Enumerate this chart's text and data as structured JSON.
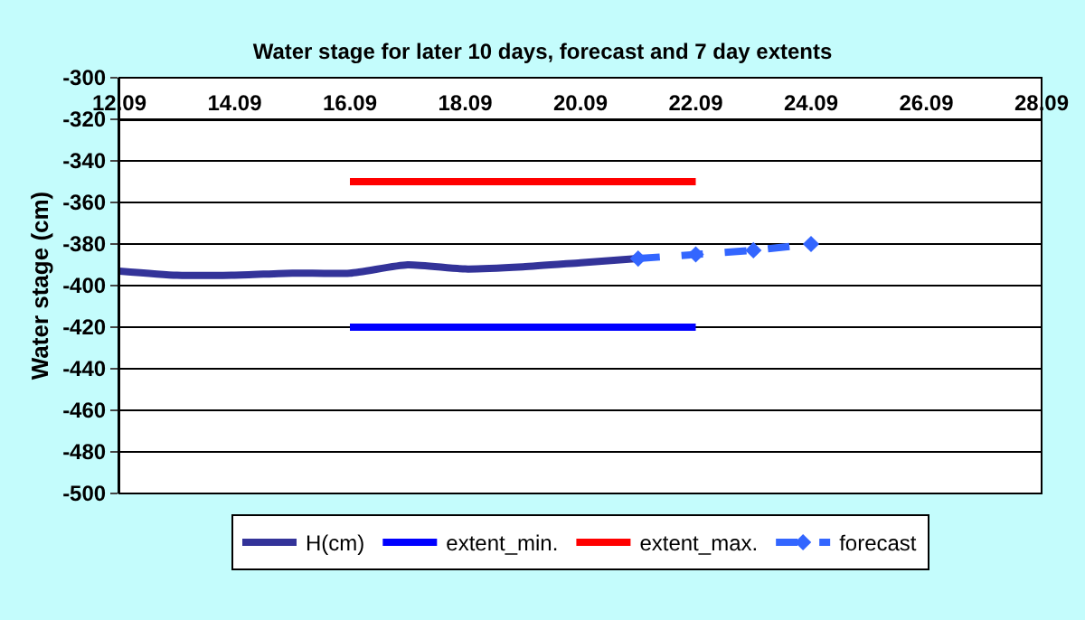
{
  "chart_data": {
    "type": "line",
    "title": "Water stage for later 10 days, forecast and 7 day extents",
    "ylabel": "Water stage (cm)",
    "xlim": [
      "--09-12",
      "--09-28"
    ],
    "xticks": [
      {
        "value": "--09-12",
        "label": "12.09"
      },
      {
        "value": "--09-14",
        "label": "14.09"
      },
      {
        "value": "--09-16",
        "label": "16.09"
      },
      {
        "value": "--09-18",
        "label": "18.09"
      },
      {
        "value": "--09-20",
        "label": "20.09"
      },
      {
        "value": "--09-22",
        "label": "22.09"
      },
      {
        "value": "--09-24",
        "label": "24.09"
      },
      {
        "value": "--09-26",
        "label": "26.09"
      },
      {
        "value": "--09-28",
        "label": "28.09"
      }
    ],
    "ylim": [
      -500,
      -300
    ],
    "yticks": [
      -300,
      -320,
      -340,
      -360,
      -380,
      -400,
      -420,
      -440,
      -460,
      -480,
      -500
    ],
    "grid": "y",
    "legend": "bottom",
    "series": [
      {
        "name": "H(cm)",
        "color": "#333399",
        "x": [
          "--09-12",
          "--09-13",
          "--09-14",
          "--09-15",
          "--09-16",
          "--09-17",
          "--09-18",
          "--09-19",
          "--09-20",
          "--09-21"
        ],
        "values": [
          -393,
          -395,
          -395,
          -394,
          -394,
          -390,
          -392,
          -391,
          -389,
          -387
        ]
      },
      {
        "name": "extent_min.",
        "color": "#0000ff",
        "x": [
          "--09-16",
          "--09-22"
        ],
        "values": [
          -420,
          -420
        ]
      },
      {
        "name": "extent_max.",
        "color": "#ff0000",
        "x": [
          "--09-16",
          "--09-22"
        ],
        "values": [
          -350,
          -350
        ]
      },
      {
        "name": "forecast",
        "color": "#3366ff",
        "x": [
          "--09-21",
          "--09-22",
          "--09-23",
          "--09-24"
        ],
        "values": [
          -387,
          -385,
          -383,
          -380
        ],
        "marker": "diamond",
        "line_style": "dashed"
      }
    ]
  }
}
